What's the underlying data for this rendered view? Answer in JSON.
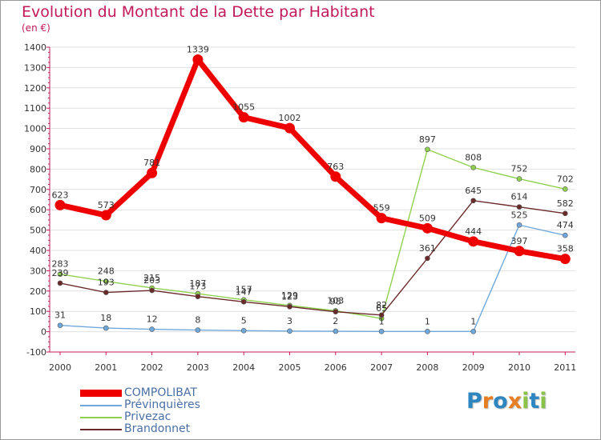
{
  "header": {
    "title": "Evolution du Montant de la Dette par Habitant",
    "unit": "(en €)"
  },
  "logo": {
    "text": "Proxiti",
    "letters": [
      {
        "ch": "P",
        "color": "#2e86c1"
      },
      {
        "ch": "r",
        "color": "#e67e22"
      },
      {
        "ch": "o",
        "color": "#2e86c1"
      },
      {
        "ch": "x",
        "color": "#e67e22"
      },
      {
        "ch": "i",
        "color": "#8bc34a"
      },
      {
        "ch": "t",
        "color": "#2e86c1"
      },
      {
        "ch": "i",
        "color": "#8bc34a"
      }
    ]
  },
  "colors": {
    "axis": "#c2185b",
    "tick_text": "#333333",
    "grid": "#e0e0e0"
  },
  "chart_data": {
    "type": "line",
    "title": "Evolution du Montant de la Dette par Habitant",
    "ylabel": "(en €)",
    "xlabel": "",
    "x": [
      "2000",
      "2001",
      "2002",
      "2003",
      "2004",
      "2005",
      "2006",
      "2007",
      "2008",
      "2009",
      "2010",
      "2011"
    ],
    "ylim": [
      -100,
      1400
    ],
    "yticks": [
      -100,
      0,
      100,
      200,
      300,
      400,
      500,
      600,
      700,
      800,
      900,
      1000,
      1100,
      1200,
      1300,
      1400
    ],
    "grid": true,
    "legend_position": "bottom-left",
    "series": [
      {
        "name": "COMPOLIBAT",
        "color": "#ee0000",
        "thick": true,
        "values": [
          623,
          573,
          781,
          1339,
          1055,
          1002,
          763,
          559,
          509,
          444,
          397,
          358
        ],
        "labels": [
          "623",
          "573",
          "781",
          "1339",
          "1055",
          "1002",
          "763",
          "559",
          "509",
          "444",
          "397",
          "358"
        ]
      },
      {
        "name": "Prévinquières",
        "color": "#6fa8dc",
        "thick": false,
        "values": [
          31,
          18,
          12,
          8,
          5,
          3,
          2,
          1,
          1,
          1,
          525,
          474
        ],
        "labels": [
          "31",
          "18",
          "12",
          "8",
          "5",
          "3",
          "2",
          "1",
          "1",
          "1",
          "525",
          "474"
        ]
      },
      {
        "name": "Privezac",
        "color": "#8fd14f",
        "thick": false,
        "values": [
          283,
          248,
          215,
          187,
          157,
          129,
          103,
          65,
          897,
          808,
          752,
          702
        ],
        "labels": [
          "283",
          "248",
          "215",
          "187",
          "157",
          "129",
          "103",
          "65",
          "897",
          "808",
          "752",
          "702"
        ]
      },
      {
        "name": "Brandonnet",
        "color": "#6b2a2a",
        "thick": false,
        "values": [
          239,
          193,
          203,
          173,
          147,
          123,
          98,
          82,
          361,
          645,
          614,
          582
        ],
        "labels": [
          "239",
          "193",
          "203",
          "173",
          "147",
          "123",
          "98",
          "82",
          "361",
          "645",
          "614",
          "582"
        ]
      }
    ]
  }
}
